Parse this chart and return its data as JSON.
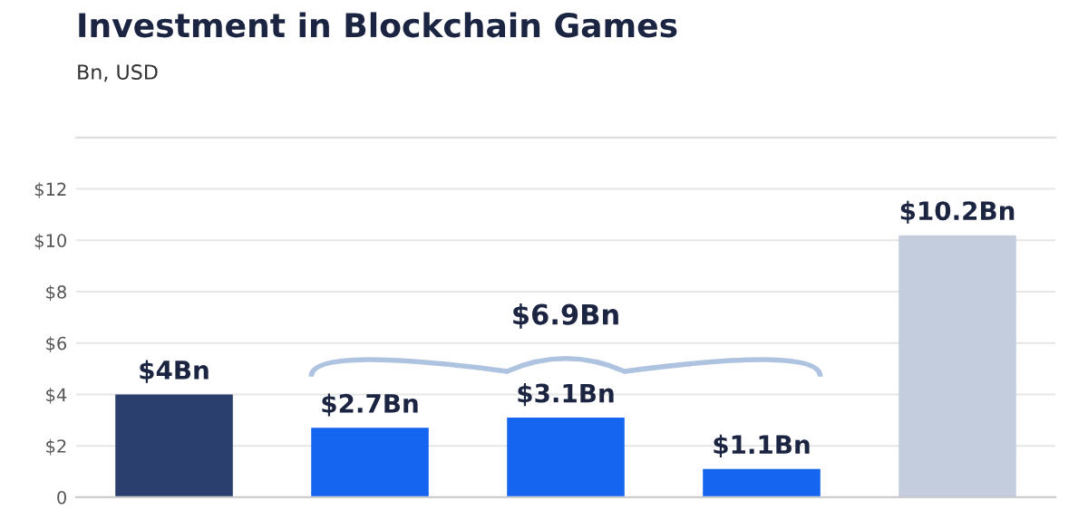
{
  "chart_data": {
    "type": "bar",
    "title": "Investment in Blockchain Games",
    "subtitle": "Bn, USD",
    "categories": [
      null,
      null,
      null,
      null,
      null
    ],
    "values": [
      4,
      2.7,
      3.1,
      1.1,
      10.2
    ],
    "colors": [
      "#2b3f6e",
      "#1565f0",
      "#1565f0",
      "#1565f0",
      "#c3cddd"
    ],
    "value_labels": [
      "$4Bn",
      "$2.7Bn",
      "$3.1Bn",
      "$1.1Bn",
      "$10.2Bn"
    ],
    "annotations": [
      "$6.9Bn"
    ],
    "ylim": [
      0,
      14
    ],
    "yticks": [
      0,
      {
        "value": 2,
        "label": "$2"
      },
      {
        "value": 4,
        "label": "$4"
      },
      {
        "value": 6,
        "label": "$6"
      },
      {
        "value": 8,
        "label": "$8"
      },
      {
        "value": 10,
        "label": "$10"
      },
      {
        "value": 12,
        "label": "$12"
      }
    ],
    "grid": "y",
    "legend": false
  }
}
